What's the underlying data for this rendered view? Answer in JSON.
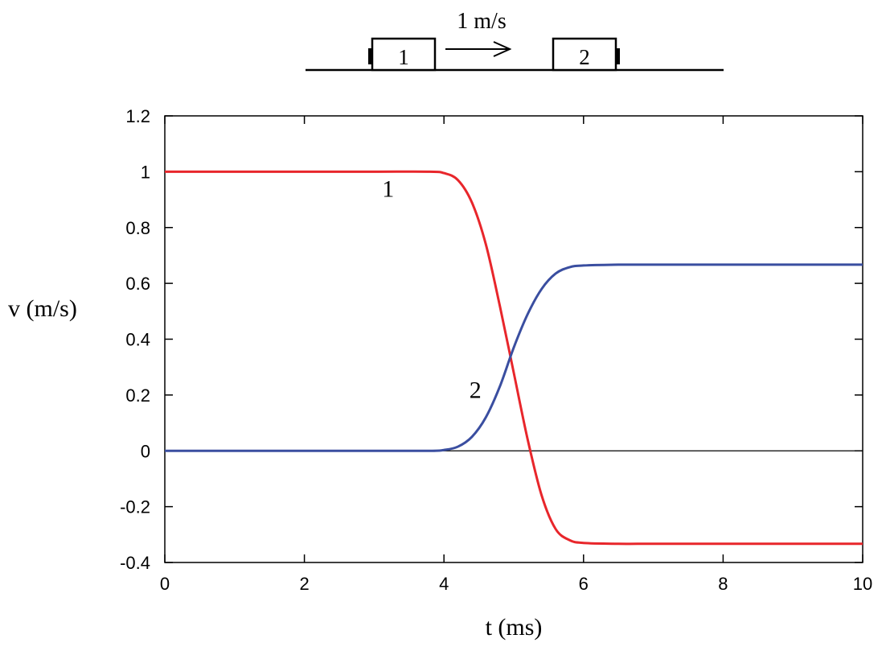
{
  "diagram": {
    "block1_label": "1",
    "block2_label": "2",
    "velocity_label": "1 m/s"
  },
  "chart_data": {
    "type": "line",
    "xlabel": "t (ms)",
    "ylabel": "v (m/s)",
    "xlim": [
      0,
      10
    ],
    "ylim": [
      -0.4,
      1.2
    ],
    "x_ticks": [
      0,
      2,
      4,
      6,
      8,
      10
    ],
    "y_ticks": [
      -0.4,
      -0.2,
      0,
      0.2,
      0.4,
      0.6,
      0.8,
      1,
      1.2
    ],
    "x_tick_labels": [
      "0",
      "2",
      "4",
      "6",
      "8",
      "10"
    ],
    "y_tick_labels": [
      "-0.4",
      "-0.2",
      "0",
      "0.2",
      "0.4",
      "0.6",
      "0.8",
      "1",
      "1.2"
    ],
    "grid": false,
    "zero_line": true,
    "series": [
      {
        "label": "1",
        "color": "#e8262b",
        "x": [
          0,
          1,
          2,
          3,
          3.8,
          4.0,
          4.2,
          4.4,
          4.6,
          4.8,
          5.0,
          5.2,
          5.4,
          5.6,
          5.8,
          6.0,
          6.5,
          7,
          8,
          9,
          10
        ],
        "y": [
          1,
          1,
          1,
          1,
          1.0,
          0.995,
          0.97,
          0.89,
          0.74,
          0.52,
          0.28,
          0.04,
          -0.16,
          -0.28,
          -0.32,
          -0.33,
          -0.333,
          -0.333,
          -0.333,
          -0.333,
          -0.333
        ]
      },
      {
        "label": "2",
        "color": "#3a4ea0",
        "x": [
          0,
          1,
          2,
          3,
          3.8,
          4.0,
          4.2,
          4.4,
          4.6,
          4.8,
          5.0,
          5.2,
          5.4,
          5.6,
          5.8,
          6.0,
          6.5,
          7,
          8,
          9,
          10
        ],
        "y": [
          0,
          0,
          0,
          0,
          0.0,
          0.003,
          0.015,
          0.05,
          0.12,
          0.23,
          0.37,
          0.49,
          0.58,
          0.635,
          0.658,
          0.664,
          0.667,
          0.667,
          0.667,
          0.667,
          0.667
        ]
      }
    ],
    "annotations": [
      {
        "text": "1",
        "series": 0,
        "x": 3.2,
        "y": 0.91
      },
      {
        "text": "2",
        "series": 1,
        "x": 4.45,
        "y": 0.19
      }
    ]
  }
}
